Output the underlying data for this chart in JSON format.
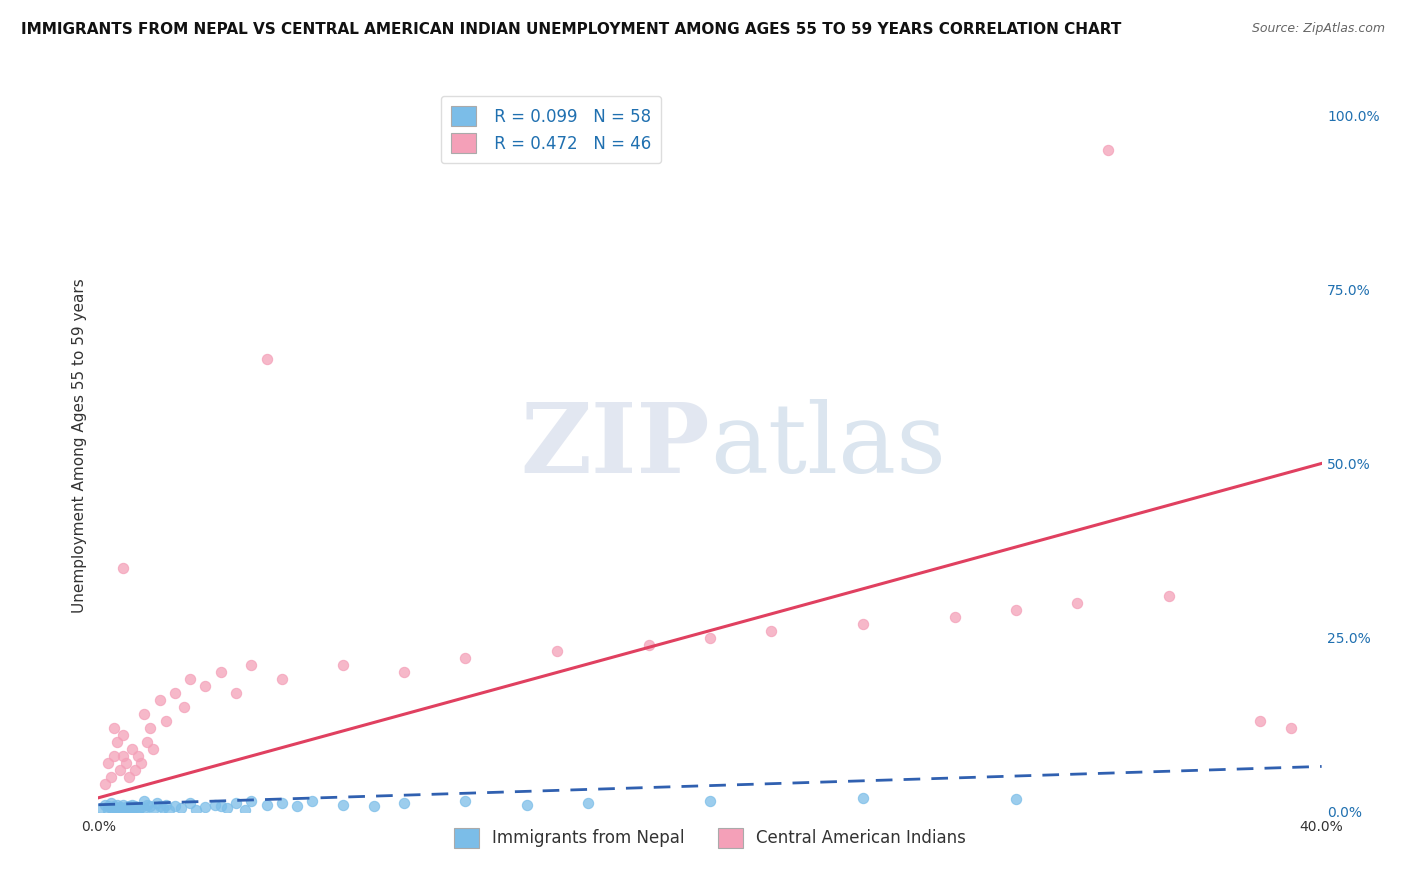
{
  "title": "IMMIGRANTS FROM NEPAL VS CENTRAL AMERICAN INDIAN UNEMPLOYMENT AMONG AGES 55 TO 59 YEARS CORRELATION CHART",
  "source": "Source: ZipAtlas.com",
  "ylabel": "Unemployment Among Ages 55 to 59 years",
  "xlim": [
    0.0,
    0.4
  ],
  "ylim": [
    0.0,
    1.05
  ],
  "right_yticks": [
    0.0,
    0.25,
    0.5,
    0.75,
    1.0
  ],
  "right_yticklabels": [
    "0.0%",
    "25.0%",
    "50.0%",
    "75.0%",
    "100.0%"
  ],
  "xticks": [
    0.0,
    0.1,
    0.2,
    0.3,
    0.4
  ],
  "xticklabels": [
    "0.0%",
    "",
    "",
    "",
    "40.0%"
  ],
  "nepal_R": 0.099,
  "nepal_N": 58,
  "central_R": 0.472,
  "central_N": 46,
  "nepal_color": "#7bbde8",
  "central_color": "#f4a0b8",
  "nepal_line_color": "#3060b0",
  "central_line_color": "#e04060",
  "background_color": "#ffffff",
  "grid_color": "#bbbbbb",
  "watermark_zip": "ZIP",
  "watermark_atlas": "atlas",
  "nepal_x": [
    0.001,
    0.002,
    0.003,
    0.003,
    0.004,
    0.004,
    0.005,
    0.005,
    0.006,
    0.006,
    0.007,
    0.007,
    0.008,
    0.008,
    0.009,
    0.009,
    0.01,
    0.01,
    0.011,
    0.011,
    0.012,
    0.012,
    0.013,
    0.014,
    0.015,
    0.015,
    0.016,
    0.017,
    0.018,
    0.019,
    0.02,
    0.021,
    0.022,
    0.023,
    0.025,
    0.027,
    0.03,
    0.032,
    0.035,
    0.038,
    0.04,
    0.042,
    0.045,
    0.048,
    0.05,
    0.055,
    0.06,
    0.065,
    0.07,
    0.08,
    0.09,
    0.1,
    0.12,
    0.14,
    0.16,
    0.2,
    0.25,
    0.3
  ],
  "nepal_y": [
    0.005,
    0.01,
    0.003,
    0.008,
    0.005,
    0.012,
    0.003,
    0.008,
    0.01,
    0.005,
    0.003,
    0.007,
    0.005,
    0.01,
    0.007,
    0.003,
    0.008,
    0.005,
    0.003,
    0.01,
    0.005,
    0.008,
    0.003,
    0.007,
    0.015,
    0.005,
    0.01,
    0.008,
    0.003,
    0.012,
    0.008,
    0.005,
    0.01,
    0.003,
    0.008,
    0.005,
    0.012,
    0.003,
    0.007,
    0.01,
    0.008,
    0.005,
    0.012,
    0.003,
    0.015,
    0.01,
    0.012,
    0.008,
    0.015,
    0.01,
    0.008,
    0.012,
    0.015,
    0.01,
    0.012,
    0.015,
    0.02,
    0.018
  ],
  "central_x": [
    0.002,
    0.003,
    0.004,
    0.005,
    0.005,
    0.006,
    0.007,
    0.008,
    0.008,
    0.009,
    0.01,
    0.011,
    0.012,
    0.013,
    0.014,
    0.015,
    0.016,
    0.017,
    0.018,
    0.02,
    0.022,
    0.025,
    0.028,
    0.03,
    0.035,
    0.04,
    0.045,
    0.05,
    0.06,
    0.08,
    0.1,
    0.12,
    0.15,
    0.18,
    0.2,
    0.22,
    0.25,
    0.28,
    0.3,
    0.32,
    0.35,
    0.055,
    0.33,
    0.38,
    0.39,
    0.008
  ],
  "central_y": [
    0.04,
    0.07,
    0.05,
    0.12,
    0.08,
    0.1,
    0.06,
    0.08,
    0.11,
    0.07,
    0.05,
    0.09,
    0.06,
    0.08,
    0.07,
    0.14,
    0.1,
    0.12,
    0.09,
    0.16,
    0.13,
    0.17,
    0.15,
    0.19,
    0.18,
    0.2,
    0.17,
    0.21,
    0.19,
    0.21,
    0.2,
    0.22,
    0.23,
    0.24,
    0.25,
    0.26,
    0.27,
    0.28,
    0.29,
    0.3,
    0.31,
    0.65,
    0.95,
    0.13,
    0.12,
    0.35
  ],
  "central_trend_x0": 0.0,
  "central_trend_y0": 0.02,
  "central_trend_x1": 0.4,
  "central_trend_y1": 0.5,
  "nepal_trend_x0": 0.0,
  "nepal_trend_y0": 0.01,
  "nepal_trend_x1": 0.4,
  "nepal_trend_y1": 0.065,
  "title_fontsize": 11,
  "axis_label_fontsize": 11,
  "tick_fontsize": 10,
  "legend_fontsize": 12
}
